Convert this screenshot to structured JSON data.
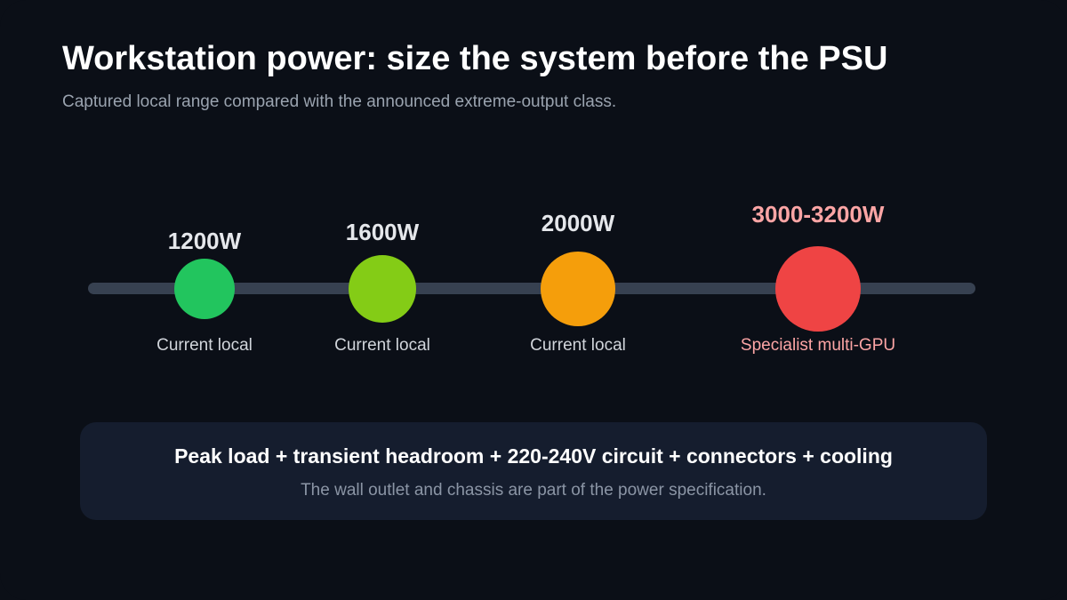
{
  "header": {
    "title": "Workstation power: size the system before the PSU",
    "subtitle": "Captured local range compared with the announced extreme-output class."
  },
  "milestones": [
    {
      "wattage": "1200W",
      "caption": "Current local",
      "color": "#22c55e"
    },
    {
      "wattage": "1600W",
      "caption": "Current local",
      "color": "#84cc16"
    },
    {
      "wattage": "2000W",
      "caption": "Current local",
      "color": "#f59e0b"
    },
    {
      "wattage": "3000-3200W",
      "caption": "Specialist multi-GPU",
      "color": "#ef4444"
    }
  ],
  "summary": {
    "headline": "Peak load + transient headroom + 220-240V circuit + connectors + cooling",
    "note": "The wall outlet and chassis are part of the power specification."
  },
  "colors": {
    "background": "#0b0f17",
    "track": "#374151",
    "summary_panel": "#151d2e",
    "highlight_text": "#fca5a5"
  }
}
